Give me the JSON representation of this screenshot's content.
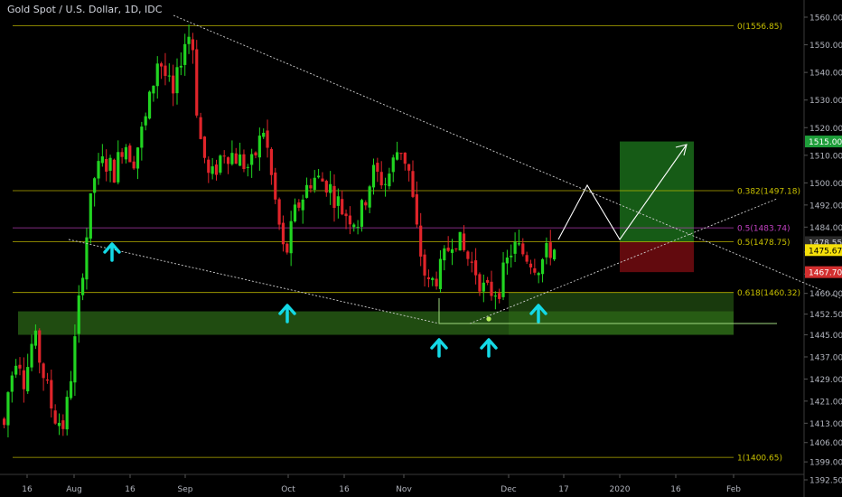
{
  "chart_data": {
    "type": "candlestick",
    "title": "Gold Spot / U.S. Dollar, 1D, IDC",
    "ylim": [
      1390.5,
      1565.5
    ],
    "y_ticks": [
      "1560.00",
      "1550.00",
      "1540.00",
      "1530.00",
      "1520.00",
      "1510.00",
      "1500.00",
      "1492.00",
      "1484.00",
      "1475.00",
      "1467.00",
      "1460.00",
      "1452.50",
      "1445.00",
      "1437.00",
      "1429.00",
      "1421.00",
      "1413.00",
      "1406.00",
      "1399.00",
      "1392.50"
    ],
    "x_ticks": [
      "16",
      "Aug",
      "16",
      "Sep",
      "Oct",
      "16",
      "Nov",
      "Dec",
      "17",
      "2020",
      "16",
      "Feb"
    ],
    "fib_levels": [
      {
        "label": "0(1556.85)",
        "value": 1556.85,
        "color": "#c8c000"
      },
      {
        "label": "0.382(1497.18)",
        "value": 1497.18,
        "color": "#c8c000"
      },
      {
        "label": "0.5(1483.74)",
        "value": 1483.74,
        "color": "#c040c0"
      },
      {
        "label": "0.5(1478.75)",
        "value": 1478.75,
        "color": "#c8c000"
      },
      {
        "label": "0.618(1460.32)",
        "value": 1460.32,
        "color": "#c8c000"
      },
      {
        "label": "1(1400.65)",
        "value": 1400.65,
        "color": "#c8c000"
      }
    ],
    "price_labels": [
      {
        "text": "1515.00",
        "value": 1515.0,
        "bg": "#1e9e3a",
        "fg": "#ffffff"
      },
      {
        "text": "1478.55",
        "value": 1478.55,
        "bg": "#2a2a2a",
        "fg": "#d1d4dc"
      },
      {
        "text": "1475.67",
        "value": 1475.67,
        "bg": "#f5e00a",
        "fg": "#000000"
      },
      {
        "text": "1467.70",
        "value": 1467.7,
        "bg": "#d32f2f",
        "fg": "#ffffff"
      }
    ],
    "support_zone": [
      1445.0,
      1453.5
    ],
    "demand_zone": [
      1445.0,
      1460.32
    ],
    "trade": {
      "entry": 1478.55,
      "target": 1515.0,
      "stop": 1467.7
    },
    "colors": {
      "up": "#21d421",
      "down": "#e0242a",
      "fib": "#c8c000",
      "arrow": "#14d9e6"
    }
  }
}
